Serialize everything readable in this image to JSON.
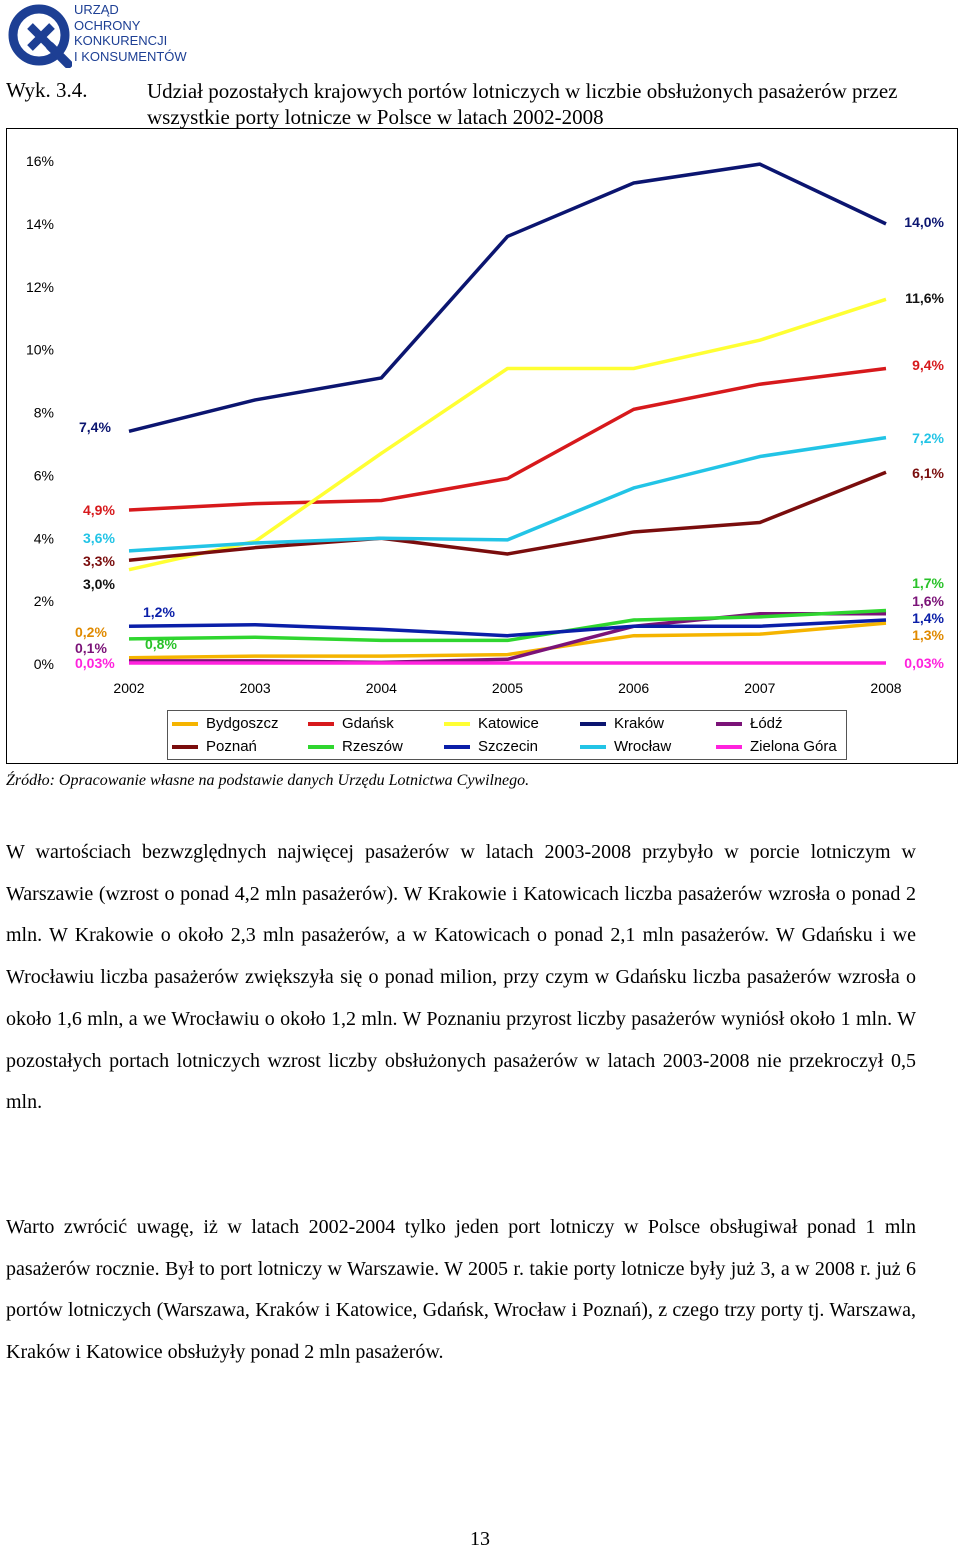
{
  "header": {
    "logo_lines": [
      "URZĄD",
      "OCHRONY",
      "KONKURENCJI",
      "I KONSUMENTÓW"
    ],
    "brand_color": "#1d3f94"
  },
  "figure": {
    "label": "Wyk. 3.4.",
    "title": "Udział pozostałych krajowych portów lotniczych w liczbie obsłużonych pasażerów przez wszystkie porty lotnicze w Polsce w latach 2002-2008",
    "source": "Źródło: Opracowanie własne na podstawie danych Urzędu Lotnictwa Cywilnego."
  },
  "chart_data": {
    "type": "line",
    "title": "",
    "xlabel": "",
    "ylabel": "",
    "x": [
      "2002",
      "2003",
      "2004",
      "2005",
      "2006",
      "2007",
      "2008"
    ],
    "ylim": [
      0,
      16
    ],
    "yticks": [
      "0%",
      "2%",
      "4%",
      "6%",
      "8%",
      "10%",
      "12%",
      "14%",
      "16%"
    ],
    "grid": false,
    "legend_position": "bottom",
    "series": [
      {
        "name": "Bydgoszcz",
        "color": "#f5b400",
        "values": [
          0.2,
          0.25,
          0.25,
          0.3,
          0.9,
          0.95,
          1.3
        ]
      },
      {
        "name": "Gdańsk",
        "color": "#d7191c",
        "values": [
          4.9,
          5.1,
          5.2,
          5.9,
          8.1,
          8.9,
          9.4
        ]
      },
      {
        "name": "Katowice",
        "color": "#ffff33",
        "values": [
          3.0,
          3.9,
          6.7,
          9.4,
          9.4,
          10.3,
          11.6
        ]
      },
      {
        "name": "Kraków",
        "color": "#0b1570",
        "values": [
          7.4,
          8.4,
          9.1,
          13.6,
          15.3,
          15.9,
          14.0
        ]
      },
      {
        "name": "Łódź",
        "color": "#7b1378",
        "values": [
          0.1,
          0.1,
          0.05,
          0.15,
          1.2,
          1.6,
          1.6
        ]
      },
      {
        "name": "Poznań",
        "color": "#7a0d0d",
        "values": [
          3.3,
          3.7,
          4.0,
          3.5,
          4.2,
          4.5,
          6.1
        ]
      },
      {
        "name": "Rzeszów",
        "color": "#2fd62f",
        "values": [
          0.8,
          0.85,
          0.75,
          0.75,
          1.4,
          1.5,
          1.7
        ]
      },
      {
        "name": "Szczecin",
        "color": "#0a1ea8",
        "values": [
          1.2,
          1.25,
          1.1,
          0.9,
          1.2,
          1.2,
          1.4
        ]
      },
      {
        "name": "Wrocław",
        "color": "#22c4e6",
        "values": [
          3.6,
          3.85,
          4.0,
          3.95,
          5.6,
          6.6,
          7.2
        ]
      },
      {
        "name": "Zielona Góra",
        "color": "#ff22dd",
        "values": [
          0.03,
          0.03,
          0.03,
          0.03,
          0.03,
          0.03,
          0.03
        ]
      }
    ],
    "annotations_left": [
      {
        "text": "7,4%",
        "series": "Kraków",
        "y": 7.4
      },
      {
        "text": "4,9%",
        "series": "Gdańsk",
        "y": 4.9
      },
      {
        "text": "3,6%",
        "series": "Wrocław",
        "y": 3.6
      },
      {
        "text": "3,3%",
        "series": "Poznań",
        "y": 3.3
      },
      {
        "text": "3,0%",
        "series": "Katowice",
        "y": 3.0
      },
      {
        "text": "1,2%",
        "series": "Szczecin",
        "y": 1.2
      },
      {
        "text": "0,2%",
        "series": "Bydgoszcz",
        "y": 0.2
      },
      {
        "text": "0,1%",
        "series": "Łódź",
        "y": 0.1
      },
      {
        "text": "0,8%",
        "series": "Rzeszów",
        "y": 0.8
      },
      {
        "text": "0,03%",
        "series": "Zielona Góra",
        "y": 0.03
      }
    ],
    "annotations_right": [
      {
        "text": "14,0%",
        "series": "Kraków",
        "y": 14.0
      },
      {
        "text": "11,6%",
        "series": "Katowice",
        "y": 11.6
      },
      {
        "text": "9,4%",
        "series": "Gdańsk",
        "y": 9.4
      },
      {
        "text": "7,2%",
        "series": "Wrocław",
        "y": 7.2
      },
      {
        "text": "6,1%",
        "series": "Poznań",
        "y": 6.1
      },
      {
        "text": "1,7%",
        "series": "Rzeszów",
        "y": 1.7
      },
      {
        "text": "1,6%",
        "series": "Łódź",
        "y": 1.6
      },
      {
        "text": "1,4%",
        "series": "Szczecin",
        "y": 1.4
      },
      {
        "text": "1,3%",
        "series": "Bydgoszcz",
        "y": 1.3
      },
      {
        "text": "0,03%",
        "series": "Zielona Góra",
        "y": 0.03
      }
    ]
  },
  "body": {
    "paragraph1": "W wartościach bezwzględnych najwięcej pasażerów w latach 2003-2008 przybyło w porcie lotniczym w Warszawie (wzrost o ponad 4,2 mln pasażerów). W Krakowie i Katowicach liczba pasażerów wzrosła o ponad 2 mln. W Krakowie o około 2,3 mln pasażerów, a w Katowicach o ponad 2,1 mln pasażerów. W Gdańsku i we Wrocławiu liczba pasażerów zwiększyła się o ponad milion, przy czym w Gdańsku liczba pasażerów wzrosła o około 1,6 mln, a we Wrocławiu o około 1,2 mln. W Poznaniu przyrost liczby pasażerów wyniósł około 1 mln. W pozostałych portach lotniczych wzrost liczby obsłużonych pasażerów w latach 2003-2008 nie przekroczył 0,5 mln.",
    "paragraph2": "Warto zwrócić uwagę, iż w latach 2002-2004 tylko jeden port lotniczy w Polsce obsługiwał ponad 1 mln pasażerów rocznie. Był to port lotniczy w Warszawie. W 2005 r. takie porty lotnicze były już 3, a w 2008 r. już 6 portów lotniczych (Warszawa, Kraków i Katowice, Gdańsk, Wrocław i Poznań), z czego trzy porty tj. Warszawa, Kraków i Katowice obsłużyły ponad 2 mln pasażerów."
  },
  "footer": {
    "page_number": "13"
  }
}
